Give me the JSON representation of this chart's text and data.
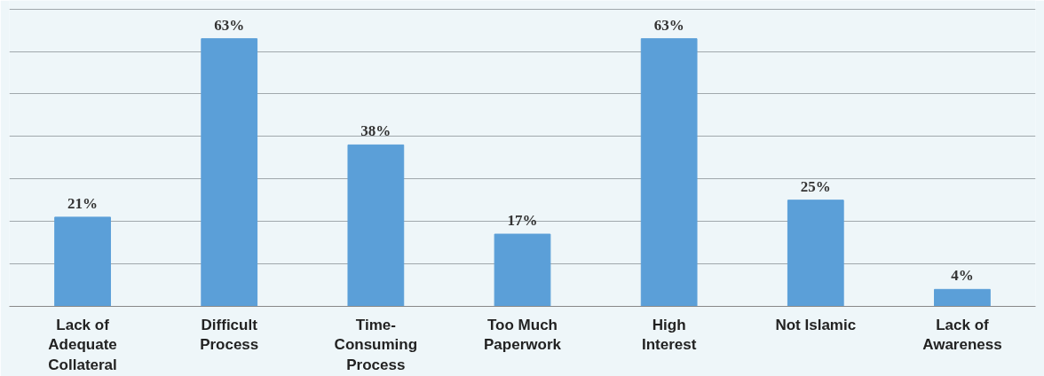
{
  "chart_data": {
    "type": "bar",
    "categories": [
      "Lack of\nAdequate\nCollateral",
      "Difficult\nProcess",
      "Time-\nConsuming\nProcess",
      "Too Much\nPaperwork",
      "High\nInterest",
      "Not Islamic",
      "Lack of\nAwareness"
    ],
    "values": [
      21,
      63,
      38,
      17,
      63,
      25,
      4
    ],
    "value_labels": [
      "21%",
      "63%",
      "38%",
      "17%",
      "63%",
      "25%",
      "4%"
    ],
    "color": "#5b9fd8",
    "ylim": [
      0,
      72
    ],
    "yticks": [
      {
        "value": 0,
        "label": null
      },
      {
        "value": 10,
        "label": null
      },
      {
        "value": 20,
        "label": null
      },
      {
        "value": 30,
        "label": null
      },
      {
        "value": 40,
        "label": null
      },
      {
        "value": 50,
        "label": null
      },
      {
        "value": 60,
        "label": null
      },
      {
        "value": 70,
        "label": null
      }
    ],
    "tick_labels": "x",
    "grid": "y"
  }
}
